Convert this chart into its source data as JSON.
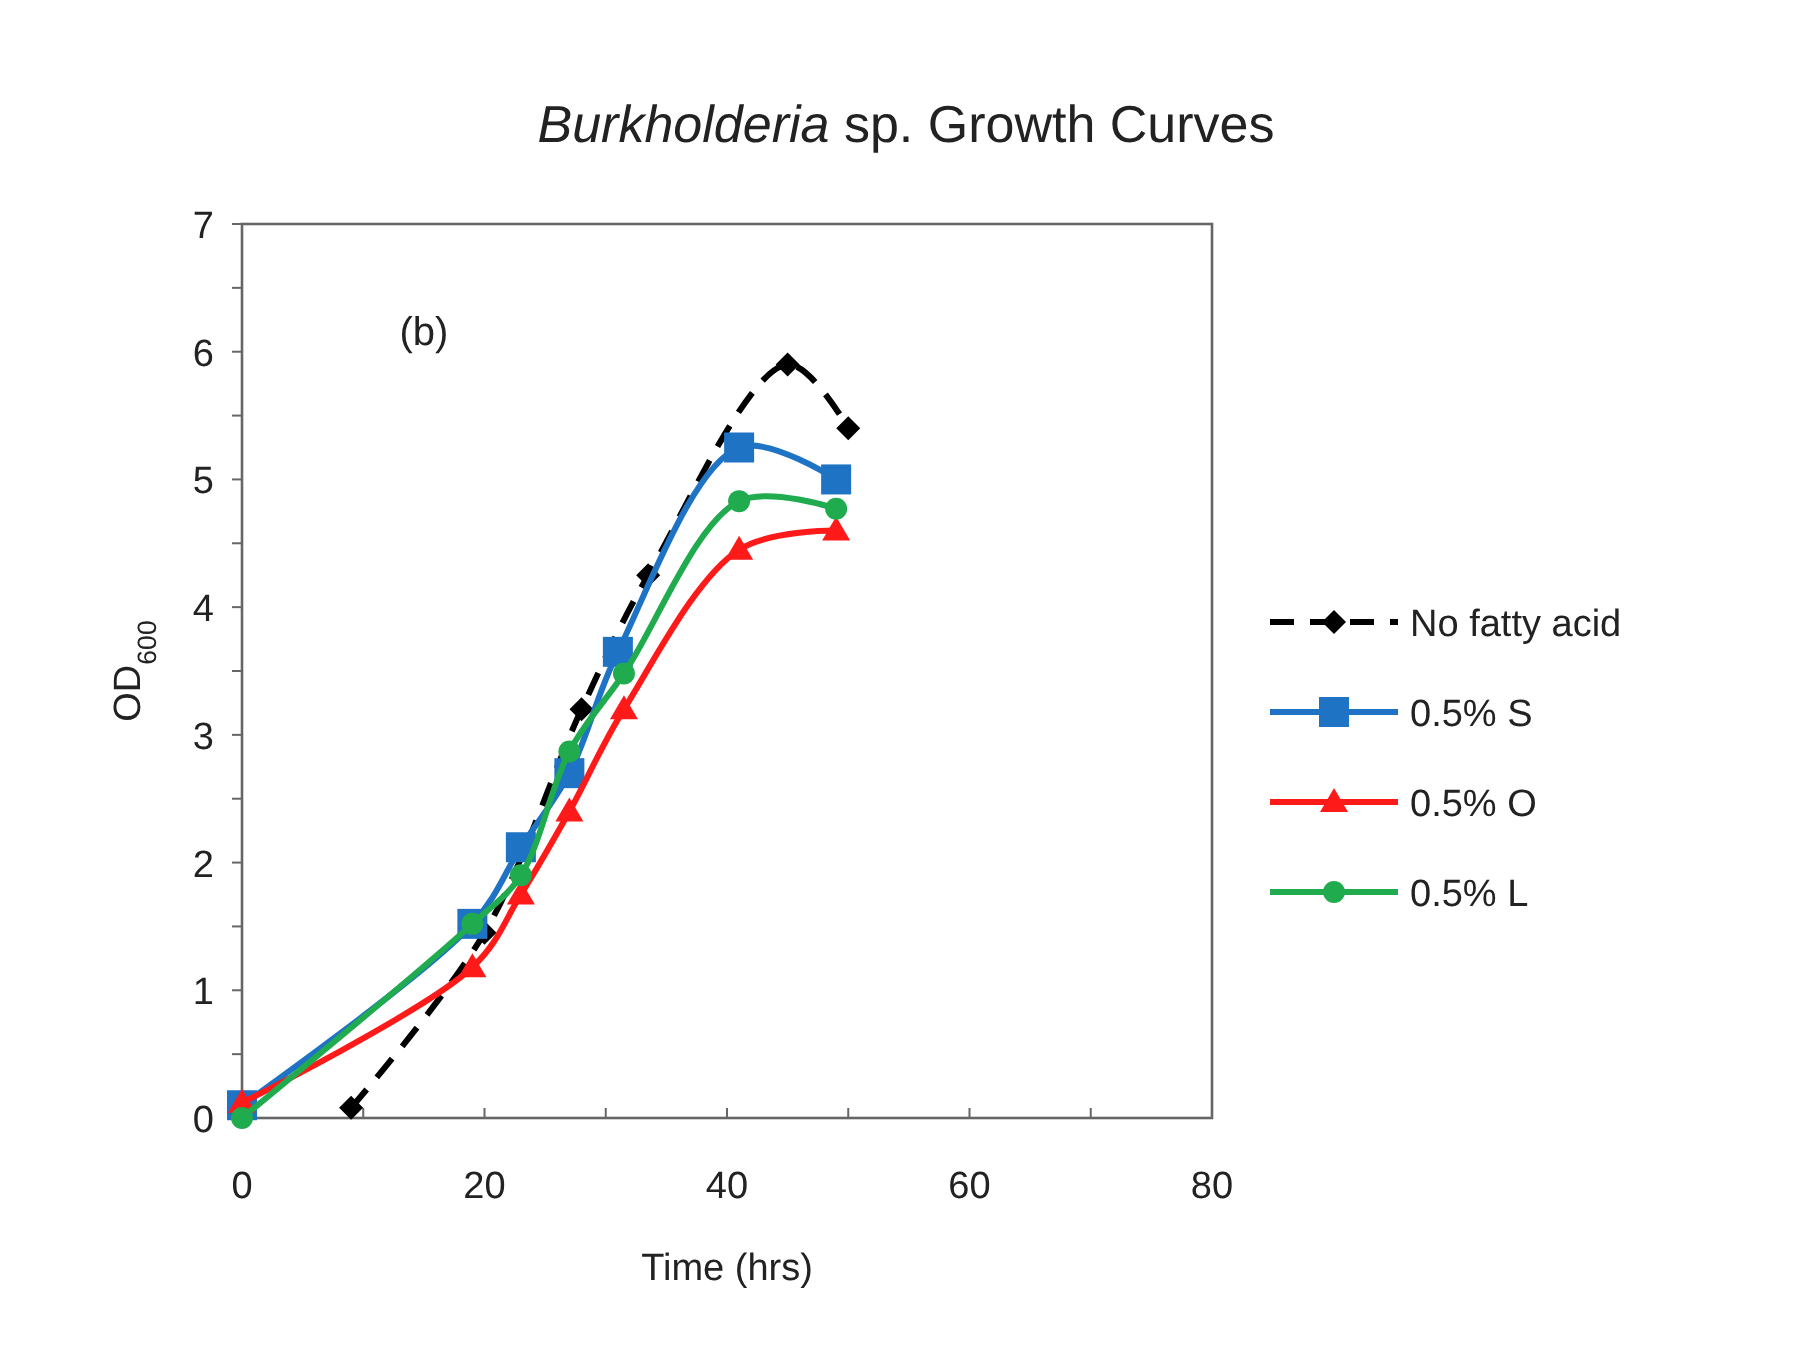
{
  "chart_data": {
    "type": "line",
    "title": "Burkholderia sp. Growth Curves",
    "xlabel": "Time (hrs)",
    "ylabel": "OD$_{600}$",
    "annotations": [
      "(b)"
    ],
    "xlim": [
      0,
      80
    ],
    "xticks": [
      0,
      {
        "value": 10,
        "label": null
      },
      20,
      {
        "value": 30,
        "label": null
      },
      40,
      {
        "value": 50,
        "label": null
      },
      60,
      {
        "value": 70,
        "label": null
      },
      80
    ],
    "ylim": [
      0,
      7
    ],
    "yticks": [
      0,
      {
        "value": 0.5,
        "label": null
      },
      1,
      {
        "value": 1.5,
        "label": null
      },
      2,
      {
        "value": 2.5,
        "label": null
      },
      3,
      {
        "value": 3.5,
        "label": null
      },
      4,
      {
        "value": 4.5,
        "label": null
      },
      5,
      {
        "value": 5.5,
        "label": null
      },
      6,
      {
        "value": 6.5,
        "label": null
      },
      7
    ],
    "grid": false,
    "legend": "right",
    "series": [
      {
        "name": "No fatty acid",
        "color": "#000000",
        "marker": "diamond",
        "line_style": "dashed",
        "x": [
          9,
          20,
          28,
          33.5,
          45,
          50
        ],
        "values": [
          0.08,
          1.45,
          3.2,
          4.25,
          5.9,
          5.4
        ]
      },
      {
        "name": "0.5% S",
        "color": "#1f73c4",
        "marker": "square",
        "line_style": "solid",
        "x": [
          0,
          19,
          23,
          27,
          31,
          41,
          49
        ],
        "values": [
          0.1,
          1.52,
          2.12,
          2.7,
          3.65,
          5.25,
          5.0
        ]
      },
      {
        "name": "0.5% O",
        "color": "#ff1a1a",
        "marker": "triangle",
        "line_style": "solid",
        "x": [
          0,
          19,
          23,
          27,
          31.5,
          41,
          49
        ],
        "values": [
          0.12,
          1.18,
          1.75,
          2.4,
          3.2,
          4.45,
          4.6
        ]
      },
      {
        "name": "0.5% L",
        "color": "#1fab4e",
        "marker": "circle",
        "line_style": "solid",
        "x": [
          0,
          19,
          23,
          27,
          31.5,
          41,
          49
        ],
        "values": [
          0.0,
          1.52,
          1.9,
          2.87,
          3.48,
          4.83,
          4.77
        ]
      }
    ]
  }
}
